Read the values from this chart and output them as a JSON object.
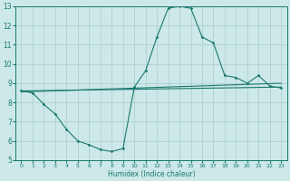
{
  "xlabel": "Humidex (Indice chaleur)",
  "xlim": [
    -0.5,
    23.5
  ],
  "ylim": [
    5,
    13
  ],
  "xticks": [
    0,
    1,
    2,
    3,
    4,
    5,
    6,
    7,
    8,
    9,
    10,
    11,
    12,
    13,
    14,
    15,
    16,
    17,
    18,
    19,
    20,
    21,
    22,
    23
  ],
  "yticks": [
    5,
    6,
    7,
    8,
    9,
    10,
    11,
    12,
    13
  ],
  "bg_color": "#cce8e8",
  "grid_color": "#aacccc",
  "line_color": "#1a7a6e",
  "curve1_x": [
    0,
    1,
    2,
    3,
    4,
    5,
    6,
    7,
    8,
    9,
    10,
    11,
    12,
    13,
    14,
    15,
    16,
    17,
    18,
    19,
    20,
    21,
    22,
    23
  ],
  "curve1_y": [
    8.6,
    8.5,
    7.9,
    7.4,
    6.6,
    6.0,
    5.8,
    5.55,
    5.45,
    5.6,
    8.8,
    9.65,
    11.4,
    12.9,
    13.0,
    12.9,
    11.4,
    11.1,
    9.4,
    9.3,
    9.0,
    9.4,
    8.85,
    8.75
  ],
  "curve2_x": [
    0,
    23
  ],
  "curve2_y": [
    8.55,
    9.0
  ],
  "curve3_x": [
    0,
    23
  ],
  "curve3_y": [
    8.6,
    8.8
  ]
}
